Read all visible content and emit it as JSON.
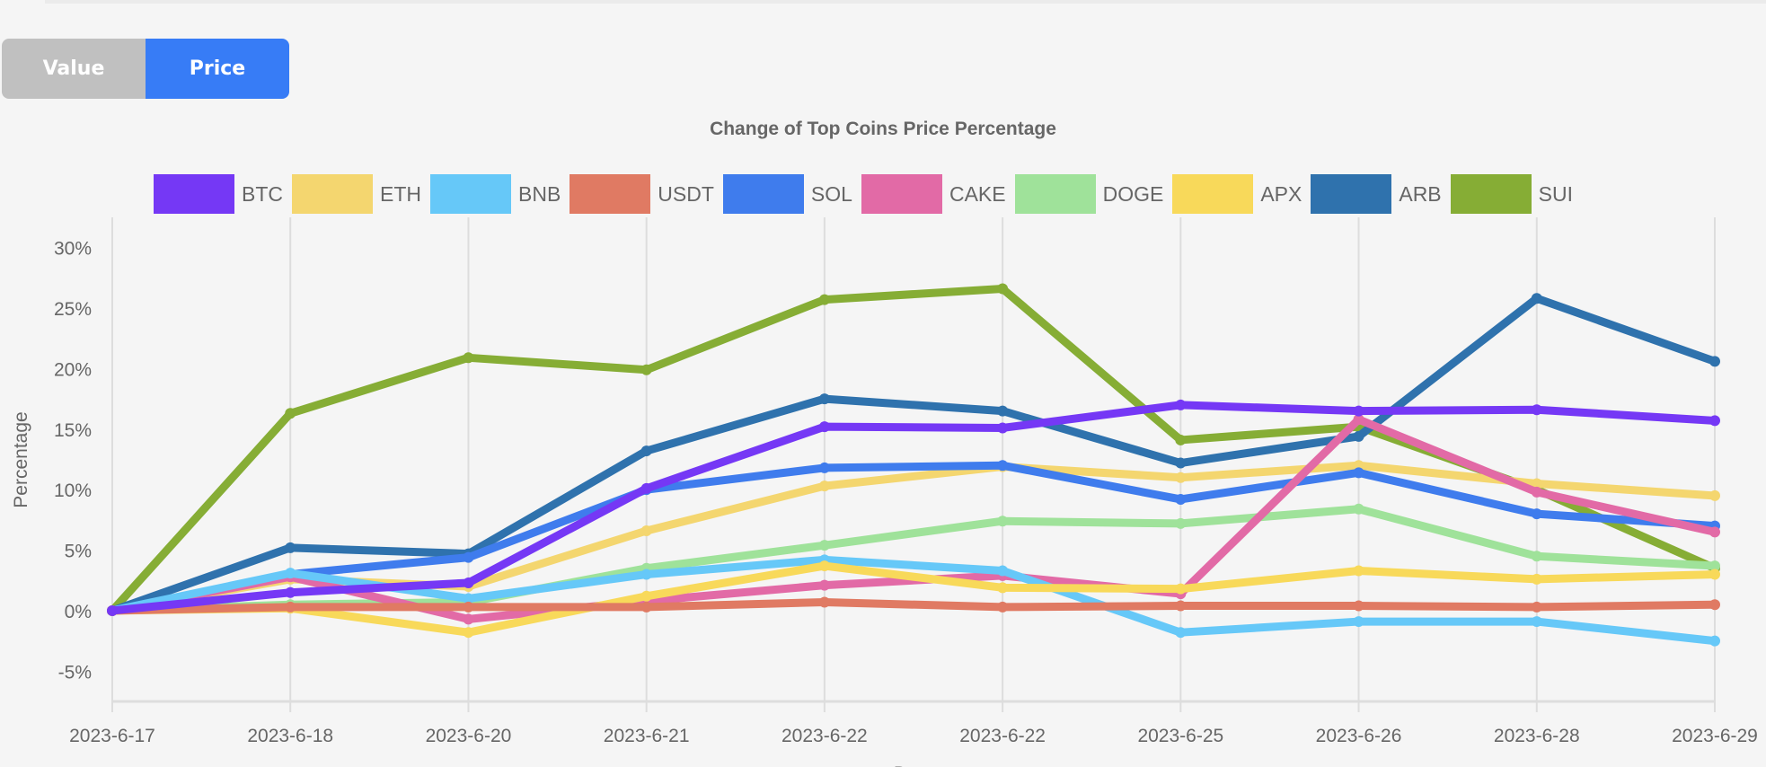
{
  "toggle": {
    "value_label": "Value",
    "price_label": "Price",
    "active": "Price"
  },
  "chart_data": {
    "type": "line",
    "title": "Change of Top Coins Price Percentage",
    "xlabel": "Date",
    "ylabel": "Percentage",
    "ylim": [
      -7.5,
      32.5
    ],
    "yticks": [
      -5,
      0,
      5,
      10,
      15,
      20,
      25,
      30
    ],
    "ytick_labels": [
      "-5%",
      "0%",
      "5%",
      "10%",
      "15%",
      "20%",
      "25%",
      "30%"
    ],
    "grid": "vertical",
    "legend": "top",
    "categories": [
      "2023-6-17",
      "2023-6-18",
      "2023-6-20",
      "2023-6-21",
      "2023-6-22",
      "2023-6-22",
      "2023-6-25",
      "2023-6-26",
      "2023-6-28",
      "2023-6-29"
    ],
    "series": [
      {
        "name": "BTC",
        "color": "#7538f5",
        "values": [
          0,
          1.5,
          2.3,
          10.1,
          15.2,
          15.1,
          17.0,
          16.5,
          16.6,
          15.7
        ]
      },
      {
        "name": "ETH",
        "color": "#f4d66f",
        "values": [
          0,
          2.6,
          2.0,
          6.6,
          10.3,
          11.9,
          11.0,
          12.0,
          10.5,
          9.5
        ]
      },
      {
        "name": "BNB",
        "color": "#66c8f8",
        "values": [
          0,
          3.1,
          1.0,
          3.0,
          4.2,
          3.3,
          -1.8,
          -0.9,
          -0.9,
          -2.5
        ]
      },
      {
        "name": "USDT",
        "color": "#e07a63",
        "values": [
          0,
          0.3,
          0.3,
          0.3,
          0.7,
          0.3,
          0.4,
          0.4,
          0.3,
          0.5
        ]
      },
      {
        "name": "SOL",
        "color": "#3f7ced",
        "values": [
          0,
          3.0,
          4.4,
          10.0,
          11.8,
          12.0,
          9.2,
          11.4,
          8.0,
          7.0
        ]
      },
      {
        "name": "CAKE",
        "color": "#e26aa6",
        "values": [
          0,
          2.8,
          -0.7,
          0.8,
          2.1,
          2.9,
          1.4,
          15.8,
          9.8,
          6.5
        ]
      },
      {
        "name": "DOGE",
        "color": "#9fe29a",
        "values": [
          0,
          0.5,
          0.7,
          3.5,
          5.4,
          7.4,
          7.2,
          8.4,
          4.5,
          3.7
        ]
      },
      {
        "name": "APX",
        "color": "#f8d95a",
        "values": [
          0,
          0.2,
          -1.8,
          1.2,
          3.7,
          1.9,
          1.8,
          3.3,
          2.6,
          3.0
        ]
      },
      {
        "name": "ARB",
        "color": "#2f72ad",
        "values": [
          0,
          5.2,
          4.7,
          13.2,
          17.5,
          16.5,
          12.2,
          14.4,
          25.8,
          20.6
        ]
      },
      {
        "name": "SUI",
        "color": "#86ad35",
        "values": [
          0,
          16.3,
          20.9,
          19.9,
          25.7,
          26.6,
          14.1,
          15.2,
          10.0,
          3.5
        ]
      }
    ]
  }
}
